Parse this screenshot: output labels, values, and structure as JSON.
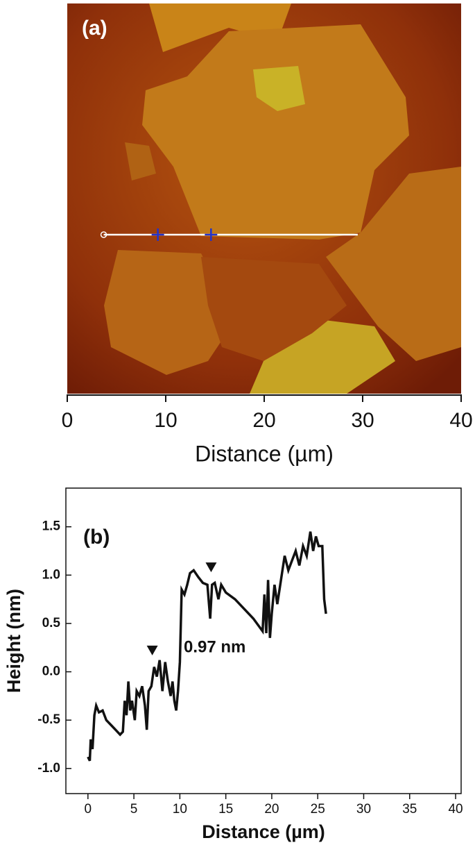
{
  "chart_data": [
    {
      "type": "image",
      "label": "(a)",
      "xlabel": "Distance (µm)",
      "xlim": [
        0,
        40
      ],
      "xticks": [
        0,
        10,
        20,
        30,
        40
      ],
      "profile_line_x": [
        3.7,
        29.5
      ],
      "cursors_x": [
        9.2,
        14.6
      ]
    },
    {
      "type": "line",
      "label": "(b)",
      "annotation": "0.97 nm",
      "xlabel": "Distance (µm)",
      "ylabel": "Height (nm)",
      "color": "#111111",
      "xlim": [
        -2.4,
        40.6
      ],
      "xticks": [
        0,
        5,
        10,
        15,
        20,
        25,
        30,
        35,
        40
      ],
      "ylim": [
        -1.26,
        1.9
      ],
      "yticks": [
        {
          "value": -1.0,
          "label": "-1.0"
        },
        -0.5,
        {
          "value": 0.0,
          "label": "0.0"
        },
        0.5,
        {
          "value": 1.0,
          "label": "1.0"
        },
        1.5
      ],
      "markers_x": [
        7.0,
        13.4
      ],
      "markers_y": [
        0.12,
        0.98
      ],
      "x": [
        0,
        0.2,
        0.3,
        0.5,
        0.7,
        0.9,
        1.2,
        1.6,
        2,
        2.5,
        3,
        3.5,
        3.8,
        4,
        4.2,
        4.4,
        4.6,
        4.8,
        5.1,
        5.3,
        5.6,
        5.9,
        6.2,
        6.4,
        6.6,
        6.9,
        7.2,
        7.5,
        7.8,
        8.1,
        8.4,
        8.7,
        9,
        9.2,
        9.4,
        9.6,
        9.8,
        10,
        10.2,
        10.5,
        10.8,
        11.1,
        11.5,
        12,
        12.5,
        13,
        13.3,
        13.5,
        13.8,
        14.2,
        14.5,
        15,
        16,
        17,
        18,
        19,
        19.2,
        19.4,
        19.6,
        19.8,
        20,
        20.3,
        20.6,
        21,
        21.4,
        21.8,
        22.2,
        22.6,
        23,
        23.4,
        23.8,
        24.2,
        24.5,
        24.8,
        25.1,
        25.5,
        25.7,
        25.9
      ],
      "values": [
        -0.88,
        -0.92,
        -0.7,
        -0.8,
        -0.45,
        -0.35,
        -0.42,
        -0.4,
        -0.5,
        -0.55,
        -0.6,
        -0.65,
        -0.62,
        -0.3,
        -0.45,
        -0.1,
        -0.4,
        -0.3,
        -0.5,
        -0.2,
        -0.25,
        -0.15,
        -0.35,
        -0.6,
        -0.2,
        -0.15,
        0.05,
        -0.05,
        0.12,
        -0.2,
        0.1,
        -0.1,
        -0.25,
        -0.1,
        -0.3,
        -0.4,
        -0.2,
        0.1,
        0.85,
        0.8,
        0.9,
        1.02,
        1.05,
        0.98,
        0.92,
        0.9,
        0.55,
        0.9,
        0.92,
        0.75,
        0.9,
        0.82,
        0.75,
        0.65,
        0.55,
        0.42,
        0.8,
        0.4,
        0.95,
        0.35,
        0.6,
        0.9,
        0.7,
        0.95,
        1.2,
        1.05,
        1.15,
        1.25,
        1.1,
        1.3,
        1.2,
        1.45,
        1.25,
        1.4,
        1.3,
        1.3,
        0.75,
        0.6
      ]
    }
  ]
}
